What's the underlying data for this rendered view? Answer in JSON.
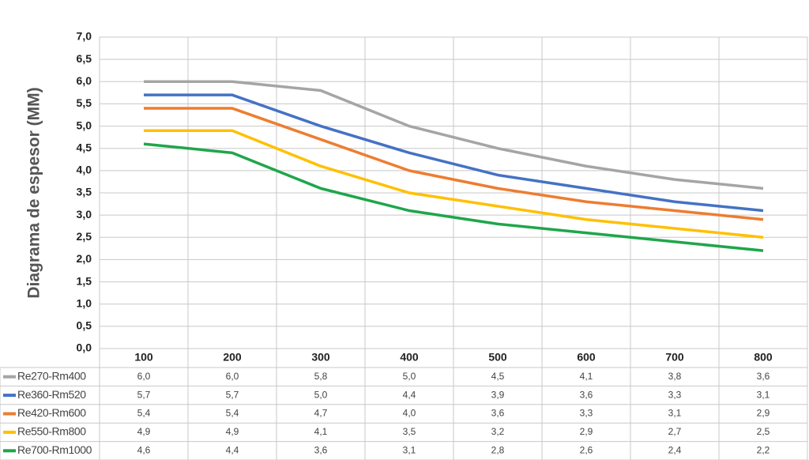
{
  "chart_data": {
    "type": "line",
    "y_label": "Diagrama de espesor (MM)",
    "categories": [
      "100",
      "200",
      "300",
      "400",
      "500",
      "600",
      "700",
      "800"
    ],
    "ylim": [
      0,
      7
    ],
    "yticks": [
      {
        "value": 0,
        "label": "0,0"
      },
      {
        "value": 0.5,
        "label": "0,5"
      },
      {
        "value": 1,
        "label": "1,0"
      },
      {
        "value": 1.5,
        "label": "1,5"
      },
      {
        "value": 2,
        "label": "2,0"
      },
      {
        "value": 2.5,
        "label": "2,5"
      },
      {
        "value": 3,
        "label": "3,0"
      },
      {
        "value": 3.5,
        "label": "3,5"
      },
      {
        "value": 4,
        "label": "4,0"
      },
      {
        "value": 4.5,
        "label": "4,5"
      },
      {
        "value": 5,
        "label": "5,0"
      },
      {
        "value": 5.5,
        "label": "5,5"
      },
      {
        "value": 6,
        "label": "6,0"
      },
      {
        "value": 6.5,
        "label": "6,5"
      },
      {
        "value": 7,
        "label": "7,0"
      }
    ],
    "grid": true,
    "series": [
      {
        "name": "Re270-Rm400",
        "color": "#a5a5a5",
        "values": [
          6.0,
          6.0,
          5.8,
          5.0,
          4.5,
          4.1,
          3.8,
          3.6
        ],
        "value_labels": [
          "6,0",
          "6,0",
          "5,8",
          "5,0",
          "4,5",
          "4,1",
          "3,8",
          "3,6"
        ]
      },
      {
        "name": "Re360-Rm520",
        "color": "#4472c4",
        "values": [
          5.7,
          5.7,
          5.0,
          4.4,
          3.9,
          3.6,
          3.3,
          3.1
        ],
        "value_labels": [
          "5,7",
          "5,7",
          "5,0",
          "4,4",
          "3,9",
          "3,6",
          "3,3",
          "3,1"
        ]
      },
      {
        "name": "Re420-Rm600",
        "color": "#ed7d31",
        "values": [
          5.4,
          5.4,
          4.7,
          4.0,
          3.6,
          3.3,
          3.1,
          2.9
        ],
        "value_labels": [
          "5,4",
          "5,4",
          "4,7",
          "4,0",
          "3,6",
          "3,3",
          "3,1",
          "2,9"
        ]
      },
      {
        "name": "Re550-Rm800",
        "color": "#ffc000",
        "values": [
          4.9,
          4.9,
          4.1,
          3.5,
          3.2,
          2.9,
          2.7,
          2.5
        ],
        "value_labels": [
          "4,9",
          "4,9",
          "4,1",
          "3,5",
          "3,2",
          "2,9",
          "2,7",
          "2,5"
        ]
      },
      {
        "name": "Re700-Rm1000",
        "color": "#1fa64a",
        "values": [
          4.6,
          4.4,
          3.6,
          3.1,
          2.8,
          2.6,
          2.4,
          2.2
        ],
        "value_labels": [
          "4,6",
          "4,4",
          "3,6",
          "3,1",
          "2,8",
          "2,6",
          "2,4",
          "2,2"
        ]
      }
    ]
  }
}
